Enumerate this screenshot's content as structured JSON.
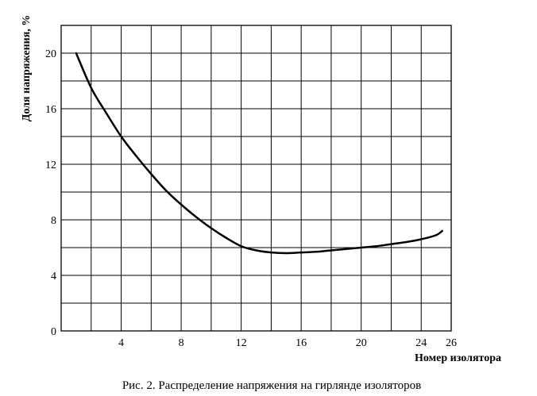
{
  "chart_data": {
    "type": "line",
    "ylabel": "Доля напряжения, %",
    "xlabel": "Номер изолятора",
    "caption": "Рис. 2. Распределение напряжения на гирлянде изоляторов",
    "xlim": [
      0,
      26
    ],
    "ylim": [
      0,
      22
    ],
    "x_ticks": [
      4,
      8,
      12,
      16,
      20,
      24,
      26
    ],
    "y_ticks": [
      0,
      4,
      8,
      12,
      16,
      20
    ],
    "x_grid_step": 2,
    "y_grid_step": 2,
    "grid": true,
    "series": [
      {
        "points": [
          [
            1,
            20.0
          ],
          [
            2,
            17.5
          ],
          [
            3,
            15.7
          ],
          [
            4,
            14.0
          ],
          [
            5,
            12.6
          ],
          [
            6,
            11.3
          ],
          [
            7,
            10.1
          ],
          [
            8,
            9.1
          ],
          [
            9,
            8.2
          ],
          [
            10,
            7.4
          ],
          [
            11,
            6.7
          ],
          [
            12,
            6.1
          ],
          [
            13,
            5.8
          ],
          [
            14,
            5.65
          ],
          [
            15,
            5.6
          ],
          [
            16,
            5.65
          ],
          [
            17,
            5.7
          ],
          [
            18,
            5.8
          ],
          [
            19,
            5.9
          ],
          [
            20,
            6.0
          ],
          [
            21,
            6.1
          ],
          [
            22,
            6.25
          ],
          [
            23,
            6.4
          ],
          [
            24,
            6.6
          ],
          [
            25,
            6.9
          ],
          [
            25.4,
            7.2
          ]
        ]
      }
    ]
  }
}
